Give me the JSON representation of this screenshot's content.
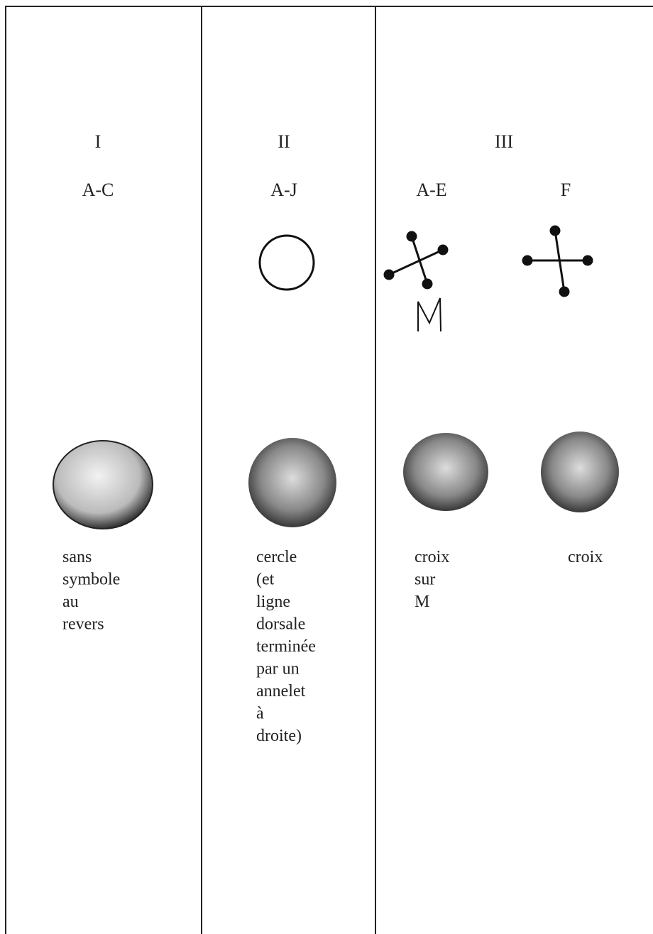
{
  "columns": [
    {
      "numeral": "I",
      "groups": [
        {
          "range": "A-C",
          "description": [
            "sans",
            "symbole",
            "au",
            "revers"
          ]
        }
      ]
    },
    {
      "numeral": "II",
      "groups": [
        {
          "range": "A-J",
          "description": [
            "cercle",
            "(et",
            "ligne",
            "dorsale",
            "terminée",
            "par un",
            "annelet",
            "à",
            "droite)"
          ]
        }
      ]
    },
    {
      "numeral": "III",
      "groups": [
        {
          "range": "A-E",
          "description": [
            "croix",
            "sur",
            "M"
          ]
        },
        {
          "range": "F",
          "description": [
            "croix"
          ]
        }
      ]
    }
  ]
}
